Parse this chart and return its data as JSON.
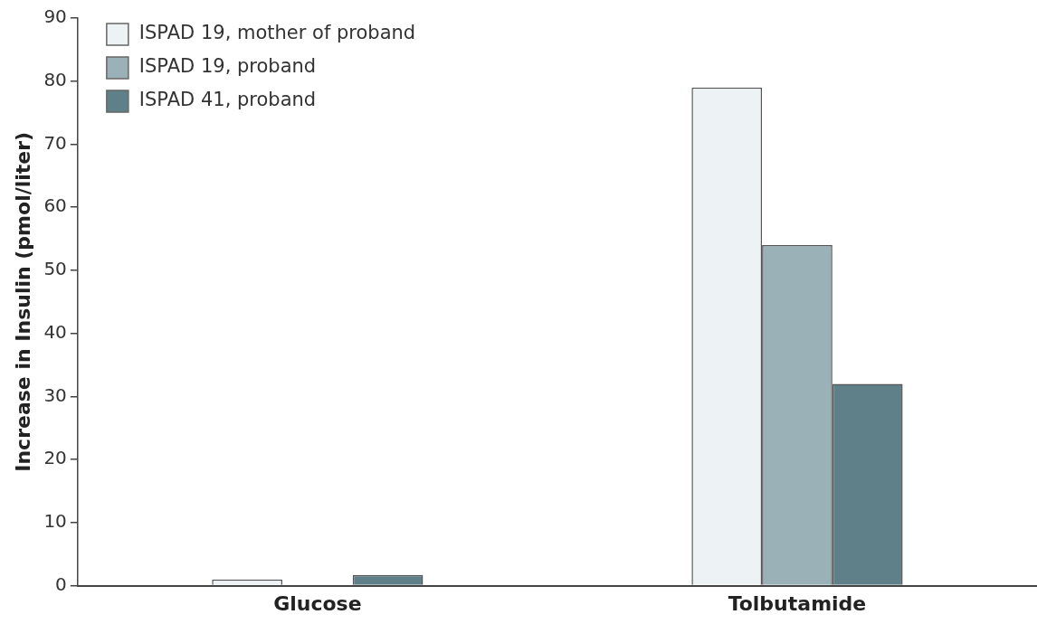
{
  "chart_data": {
    "type": "bar",
    "ylabel": "Increase in Insulin (pmol/liter)",
    "categories": [
      "Glucose",
      "Tolbutamide"
    ],
    "series": [
      {
        "name": "ISPAD 19, mother of proband",
        "color": "#edf2f4",
        "values": [
          1,
          79
        ]
      },
      {
        "name": "ISPAD 19, proband",
        "color": "#9ab1b8",
        "values": [
          0,
          54
        ]
      },
      {
        "name": "ISPAD 41, proband",
        "color": "#5f8088",
        "values": [
          1.7,
          32
        ]
      }
    ],
    "ylim": [
      0,
      90
    ],
    "yticks": [
      0,
      10,
      20,
      30,
      40,
      50,
      60,
      70,
      80,
      90
    ],
    "grid": false,
    "legend": "top left"
  }
}
